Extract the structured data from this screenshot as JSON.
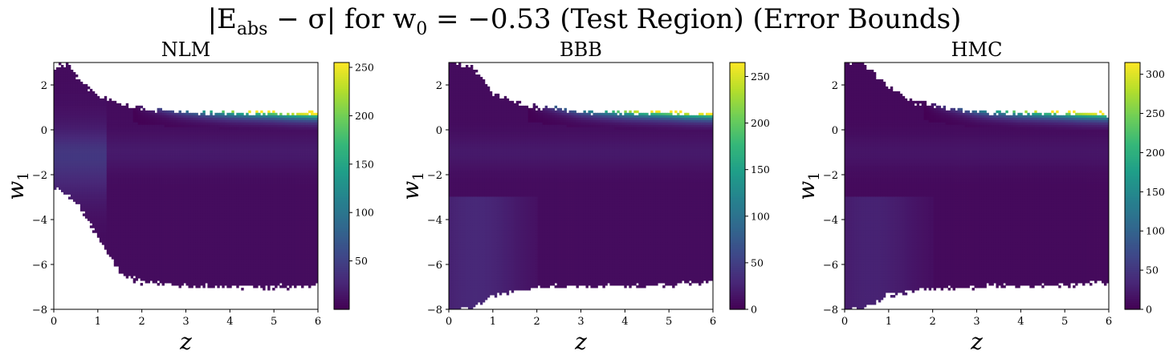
{
  "figure": {
    "title_pre": "|E",
    "title_sub": "abs",
    "title_post": " − σ| for w",
    "title_sub2": "0",
    "title_tail": " = −0.53 (Test Region) (Error Bounds)"
  },
  "colors": {
    "viridis": [
      "#440154",
      "#482878",
      "#3e4989",
      "#31688e",
      "#26828e",
      "#1f9e89",
      "#35b779",
      "#6ece58",
      "#b5de2b",
      "#fde725"
    ],
    "background": "#ffffff"
  },
  "chart_data": [
    {
      "type": "heatmap",
      "title": "NLM",
      "xlabel": "z",
      "ylabel": "w1",
      "xlim": [
        0,
        6
      ],
      "ylim": [
        -8,
        3
      ],
      "xticks": [
        0,
        1,
        2,
        3,
        4,
        5,
        6
      ],
      "yticks": [
        -8,
        -6,
        -4,
        -2,
        0,
        2
      ],
      "colorbar": {
        "min": 0,
        "max": 255,
        "ticks": [
          50,
          100,
          150,
          200,
          250
        ]
      },
      "grid": false,
      "upper_boundary_w1": [
        [
          0,
          2.7
        ],
        [
          0.3,
          3.0
        ],
        [
          0.6,
          2.2
        ],
        [
          1.0,
          1.5
        ],
        [
          1.5,
          1.15
        ],
        [
          2.0,
          0.95
        ],
        [
          3.0,
          0.8
        ],
        [
          4.0,
          0.75
        ],
        [
          5.0,
          0.75
        ],
        [
          6.0,
          0.7
        ]
      ],
      "lower_boundary_w1": [
        [
          0,
          -2.5
        ],
        [
          0.5,
          -3.2
        ],
        [
          1.0,
          -4.8
        ],
        [
          1.5,
          -6.4
        ],
        [
          2.0,
          -6.8
        ],
        [
          3.0,
          -6.95
        ],
        [
          4.0,
          -7.0
        ],
        [
          5.0,
          -7.0
        ],
        [
          6.0,
          -6.95
        ]
      ],
      "peak_value": 255,
      "note_values": "high error near upper edge for z > 3, low elsewhere"
    },
    {
      "type": "heatmap",
      "title": "BBB",
      "xlabel": "z",
      "ylabel": "w1",
      "xlim": [
        0,
        6
      ],
      "ylim": [
        -8,
        3
      ],
      "xticks": [
        0,
        1,
        2,
        3,
        4,
        5,
        6
      ],
      "yticks": [
        -8,
        -6,
        -4,
        -2,
        0,
        2
      ],
      "colorbar": {
        "min": 0,
        "max": 265,
        "ticks": [
          0,
          50,
          100,
          150,
          200,
          250
        ]
      },
      "grid": false,
      "upper_boundary_w1": [
        [
          0,
          3.0
        ],
        [
          0.5,
          2.9
        ],
        [
          1.0,
          1.6
        ],
        [
          1.5,
          1.2
        ],
        [
          2.0,
          1.0
        ],
        [
          3.0,
          0.8
        ],
        [
          4.0,
          0.75
        ],
        [
          5.0,
          0.75
        ],
        [
          6.0,
          0.7
        ]
      ],
      "lower_boundary_w1": [
        [
          0,
          -8.0
        ],
        [
          0.5,
          -8.0
        ],
        [
          0.8,
          -7.6
        ],
        [
          1.0,
          -7.4
        ],
        [
          1.5,
          -7.2
        ],
        [
          2.0,
          -7.0
        ],
        [
          3.0,
          -6.95
        ],
        [
          4.0,
          -6.95
        ],
        [
          5.0,
          -6.9
        ],
        [
          6.0,
          -6.75
        ]
      ],
      "peak_value": 265,
      "note_values": "high error near upper edge for z > 3, low elsewhere"
    },
    {
      "type": "heatmap",
      "title": "HMC",
      "xlabel": "z",
      "ylabel": "w1",
      "xlim": [
        0,
        6
      ],
      "ylim": [
        -8,
        3
      ],
      "xticks": [
        0,
        1,
        2,
        3,
        4,
        5,
        6
      ],
      "yticks": [
        -8,
        -6,
        -4,
        -2,
        0,
        2
      ],
      "colorbar": {
        "min": 0,
        "max": 315,
        "ticks": [
          0,
          50,
          100,
          150,
          200,
          250,
          300
        ]
      },
      "grid": false,
      "upper_boundary_w1": [
        [
          0,
          3.0
        ],
        [
          0.4,
          3.0
        ],
        [
          1.0,
          1.9
        ],
        [
          1.5,
          1.3
        ],
        [
          2.0,
          1.05
        ],
        [
          3.0,
          0.8
        ],
        [
          4.0,
          0.75
        ],
        [
          5.0,
          0.75
        ],
        [
          6.0,
          0.7
        ]
      ],
      "lower_boundary_w1": [
        [
          0,
          -8.0
        ],
        [
          0.4,
          -8.0
        ],
        [
          0.8,
          -7.6
        ],
        [
          1.0,
          -7.35
        ],
        [
          1.5,
          -7.2
        ],
        [
          2.0,
          -7.05
        ],
        [
          3.0,
          -7.0
        ],
        [
          4.0,
          -6.95
        ],
        [
          5.0,
          -6.95
        ],
        [
          6.0,
          -6.8
        ]
      ],
      "peak_value": 315,
      "note_values": "high error near upper edge for z > 3, low elsewhere"
    }
  ]
}
